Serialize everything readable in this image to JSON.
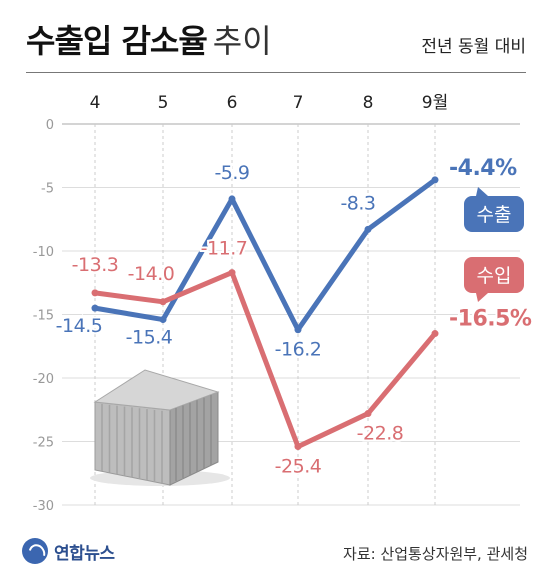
{
  "header": {
    "title_bold": "수출입 감소율",
    "title_light": "추이",
    "subtitle": "전년 동월 대비"
  },
  "footer": {
    "logo_text": "연합뉴스",
    "source": "자료: 산업통상자원부, 관세청"
  },
  "chart_data": {
    "type": "line",
    "categories": [
      "4",
      "5",
      "6",
      "7",
      "8",
      "9월"
    ],
    "ylim": [
      -30,
      0
    ],
    "yticks": [
      0,
      -5,
      -10,
      -15,
      -20,
      -25,
      -30
    ],
    "grid": true,
    "legend": "right, inline callouts",
    "series": [
      {
        "name": "수출",
        "color": "#4a74b8",
        "values": [
          -14.5,
          -15.4,
          -5.9,
          -16.2,
          -8.3,
          -4.4
        ],
        "labels": [
          "-14.5",
          "-15.4",
          "-5.9",
          "-16.2",
          "-8.3",
          "-4.4%"
        ]
      },
      {
        "name": "수입",
        "color": "#d96e72",
        "values": [
          -13.3,
          -14.0,
          -11.7,
          -25.4,
          -22.8,
          -16.5
        ],
        "labels": [
          "-13.3",
          "-14.0",
          "-11.7",
          "-25.4",
          "-22.8",
          "-16.5%"
        ]
      }
    ]
  }
}
